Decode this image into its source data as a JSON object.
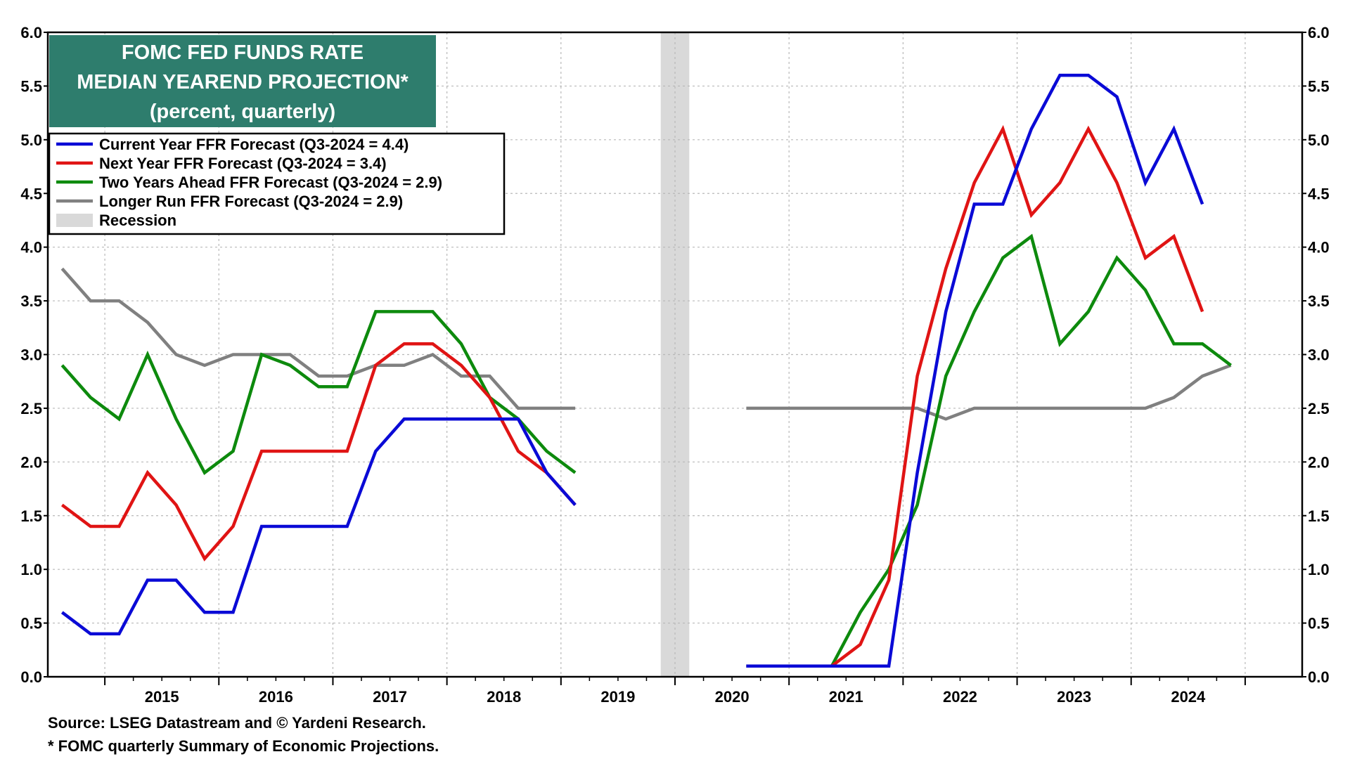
{
  "chart_data": {
    "type": "line",
    "title_lines": [
      "FOMC FED FUNDS RATE",
      "MEDIAN YEAREND PROJECTION*",
      "(percent, quarterly)"
    ],
    "ylim": [
      0,
      6
    ],
    "y_ticks": [
      "0.0",
      "0.5",
      "1.0",
      "1.5",
      "2.0",
      "2.5",
      "3.0",
      "3.5",
      "4.0",
      "4.5",
      "5.0",
      "5.5",
      "6.0"
    ],
    "x_year_labels": [
      "2015",
      "2016",
      "2017",
      "2018",
      "2019",
      "2020",
      "2021",
      "2022",
      "2023",
      "2024"
    ],
    "grid": true,
    "legend_position": "top-left",
    "recession": {
      "label": "Recession",
      "start": "2020Q1",
      "end": "2020Q2",
      "color": "#d9d9d9"
    },
    "series": [
      {
        "name": "Current Year FFR Forecast (Q3-2024 = 4.4)",
        "color": "#0a0ad6",
        "points": [
          [
            "2014Q4",
            0.6
          ],
          [
            "2015Q1",
            0.4
          ],
          [
            "2015Q2",
            0.4
          ],
          [
            "2015Q3",
            0.9
          ],
          [
            "2015Q4",
            0.9
          ],
          [
            "2016Q1",
            0.6
          ],
          [
            "2016Q2",
            0.6
          ],
          [
            "2016Q3",
            1.4
          ],
          [
            "2016Q4",
            1.4
          ],
          [
            "2017Q1",
            1.4
          ],
          [
            "2017Q2",
            1.4
          ],
          [
            "2017Q3",
            2.1
          ],
          [
            "2017Q4",
            2.4
          ],
          [
            "2018Q1",
            2.4
          ],
          [
            "2018Q2",
            2.4
          ],
          [
            "2018Q3",
            2.4
          ],
          [
            "2018Q4",
            2.4
          ],
          [
            "2019Q1",
            1.9
          ],
          [
            "2019Q2",
            1.6
          ],
          [
            "2020Q4",
            0.1
          ],
          [
            "2021Q1",
            0.1
          ],
          [
            "2021Q2",
            0.1
          ],
          [
            "2021Q3",
            0.1
          ],
          [
            "2021Q4",
            0.1
          ],
          [
            "2022Q1",
            0.1
          ],
          [
            "2022Q2",
            1.9
          ],
          [
            "2022Q3",
            3.4
          ],
          [
            "2022Q4",
            4.4
          ],
          [
            "2023Q1",
            4.4
          ],
          [
            "2023Q2",
            5.1
          ],
          [
            "2023Q3",
            5.6
          ],
          [
            "2023Q4",
            5.6
          ],
          [
            "2024Q1",
            5.4
          ],
          [
            "2024Q2",
            4.6
          ],
          [
            "2024Q3",
            5.1
          ],
          [
            "2024Q4",
            4.4
          ]
        ]
      },
      {
        "name": "Next Year FFR Forecast (Q3-2024 = 3.4)",
        "color": "#e01414",
        "points": [
          [
            "2014Q4",
            1.6
          ],
          [
            "2015Q1",
            1.4
          ],
          [
            "2015Q2",
            1.4
          ],
          [
            "2015Q3",
            1.9
          ],
          [
            "2015Q4",
            1.6
          ],
          [
            "2016Q1",
            1.1
          ],
          [
            "2016Q2",
            1.4
          ],
          [
            "2016Q3",
            2.1
          ],
          [
            "2016Q4",
            2.1
          ],
          [
            "2017Q1",
            2.1
          ],
          [
            "2017Q2",
            2.1
          ],
          [
            "2017Q3",
            2.9
          ],
          [
            "2017Q4",
            3.1
          ],
          [
            "2018Q1",
            3.1
          ],
          [
            "2018Q2",
            2.9
          ],
          [
            "2018Q3",
            2.6
          ],
          [
            "2018Q4",
            2.1
          ],
          [
            "2019Q1",
            1.9
          ],
          [
            "2019Q2",
            1.6
          ],
          [
            "2020Q4",
            0.1
          ],
          [
            "2021Q1",
            0.1
          ],
          [
            "2021Q2",
            0.1
          ],
          [
            "2021Q3",
            0.1
          ],
          [
            "2021Q4",
            0.3
          ],
          [
            "2022Q1",
            0.9
          ],
          [
            "2022Q2",
            2.8
          ],
          [
            "2022Q3",
            3.8
          ],
          [
            "2022Q4",
            4.6
          ],
          [
            "2023Q1",
            5.1
          ],
          [
            "2023Q2",
            4.3
          ],
          [
            "2023Q3",
            4.6
          ],
          [
            "2023Q4",
            5.1
          ],
          [
            "2024Q1",
            4.6
          ],
          [
            "2024Q2",
            3.9
          ],
          [
            "2024Q3",
            4.1
          ],
          [
            "2024Q4",
            3.4
          ]
        ]
      },
      {
        "name": "Two Years Ahead FFR Forecast (Q3-2024 = 2.9)",
        "color": "#0d8a0d",
        "points": [
          [
            "2014Q4",
            2.9
          ],
          [
            "2015Q1",
            2.6
          ],
          [
            "2015Q2",
            2.4
          ],
          [
            "2015Q3",
            3.0
          ],
          [
            "2015Q4",
            2.4
          ],
          [
            "2016Q1",
            1.9
          ],
          [
            "2016Q2",
            2.1
          ],
          [
            "2016Q3",
            3.0
          ],
          [
            "2016Q4",
            2.9
          ],
          [
            "2017Q1",
            2.7
          ],
          [
            "2017Q2",
            2.7
          ],
          [
            "2017Q3",
            3.4
          ],
          [
            "2017Q4",
            3.4
          ],
          [
            "2018Q1",
            3.4
          ],
          [
            "2018Q2",
            3.1
          ],
          [
            "2018Q3",
            2.6
          ],
          [
            "2018Q4",
            2.4
          ],
          [
            "2019Q1",
            2.1
          ],
          [
            "2019Q2",
            1.9
          ],
          [
            "2020Q4",
            0.1
          ],
          [
            "2021Q1",
            0.1
          ],
          [
            "2021Q2",
            0.1
          ],
          [
            "2021Q3",
            0.1
          ],
          [
            "2021Q4",
            0.6
          ],
          [
            "2022Q1",
            1.0
          ],
          [
            "2022Q2",
            1.6
          ],
          [
            "2022Q3",
            2.8
          ],
          [
            "2022Q4",
            3.4
          ],
          [
            "2023Q1",
            3.9
          ],
          [
            "2023Q2",
            4.1
          ],
          [
            "2023Q3",
            3.1
          ],
          [
            "2023Q4",
            3.4
          ],
          [
            "2024Q1",
            3.9
          ],
          [
            "2024Q2",
            3.6
          ],
          [
            "2024Q3",
            3.1
          ],
          [
            "2024Q4",
            3.1
          ],
          [
            "2025Q1",
            2.9
          ]
        ]
      },
      {
        "name": "Longer Run FFR Forecast (Q3-2024 = 2.9)",
        "color": "#808080",
        "points": [
          [
            "2014Q4",
            3.8
          ],
          [
            "2015Q1",
            3.5
          ],
          [
            "2015Q2",
            3.5
          ],
          [
            "2015Q3",
            3.3
          ],
          [
            "2015Q4",
            3.0
          ],
          [
            "2016Q1",
            2.9
          ],
          [
            "2016Q2",
            3.0
          ],
          [
            "2016Q3",
            3.0
          ],
          [
            "2016Q4",
            3.0
          ],
          [
            "2017Q1",
            2.8
          ],
          [
            "2017Q2",
            2.8
          ],
          [
            "2017Q3",
            2.9
          ],
          [
            "2017Q4",
            2.9
          ],
          [
            "2018Q1",
            3.0
          ],
          [
            "2018Q2",
            2.8
          ],
          [
            "2018Q3",
            2.8
          ],
          [
            "2018Q4",
            2.5
          ],
          [
            "2019Q1",
            2.5
          ],
          [
            "2019Q2",
            2.5
          ],
          [
            "2020Q4",
            2.5
          ],
          [
            "2021Q1",
            2.5
          ],
          [
            "2021Q2",
            2.5
          ],
          [
            "2021Q3",
            2.5
          ],
          [
            "2021Q4",
            2.5
          ],
          [
            "2022Q1",
            2.5
          ],
          [
            "2022Q2",
            2.5
          ],
          [
            "2022Q3",
            2.4
          ],
          [
            "2022Q4",
            2.5
          ],
          [
            "2023Q1",
            2.5
          ],
          [
            "2023Q2",
            2.5
          ],
          [
            "2023Q3",
            2.5
          ],
          [
            "2023Q4",
            2.5
          ],
          [
            "2024Q1",
            2.5
          ],
          [
            "2024Q2",
            2.5
          ],
          [
            "2024Q3",
            2.6
          ],
          [
            "2024Q4",
            2.8
          ],
          [
            "2025Q1",
            2.9
          ]
        ]
      }
    ]
  },
  "footnotes": {
    "source": "Source: LSEG Datastream and © Yardeni Research.",
    "note": "* FOMC quarterly Summary of Economic Projections."
  }
}
